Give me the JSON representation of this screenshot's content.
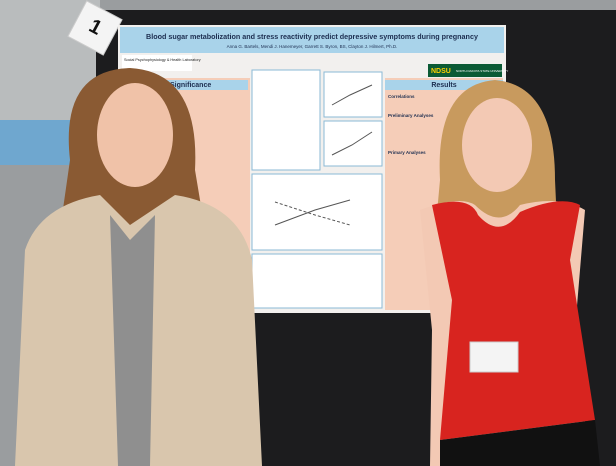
{
  "card": {
    "number": "1"
  },
  "poster": {
    "title": "Blood sugar metabolization and stress reactivity predict depressive symptoms during pregnancy",
    "authors": "Anna G. Bartels, Mendi J. Hanemeyer, Garrett S. Byron, BS, Clayton J. Hilmert, Ph.D.",
    "lab": "Social Psychophysiology & Health Laboratory",
    "logo": {
      "mark": "NDSU",
      "name": "NORTH DAKOTA STATE UNIVERSITY"
    },
    "sections": {
      "significance": "Significance",
      "results": "Results",
      "correlations": "Correlations",
      "preliminary": "Preliminary Analyses",
      "primary": "Primary Analyses"
    }
  }
}
